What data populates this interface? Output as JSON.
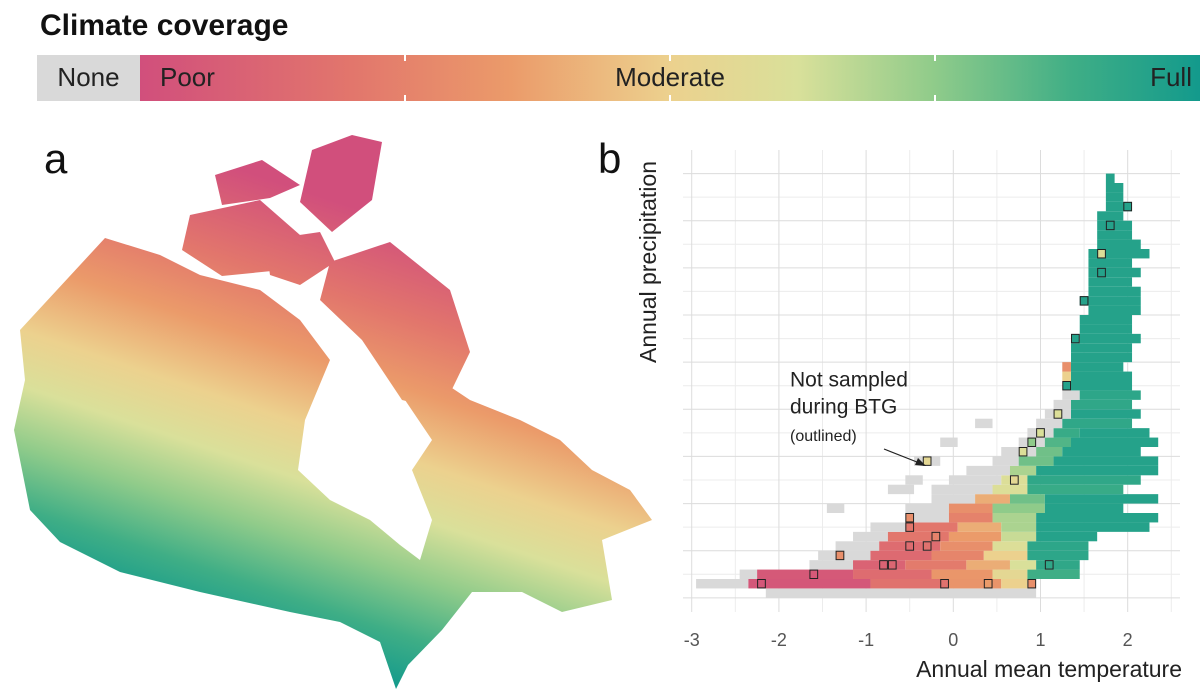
{
  "title": "Climate coverage",
  "legend": {
    "labels": [
      "None",
      "Poor",
      "Moderate",
      "Full"
    ],
    "none_color": "#d9d9d9",
    "stops": [
      [
        0,
        "#d14f7c"
      ],
      [
        0.2,
        "#e2766c"
      ],
      [
        0.35,
        "#eb9b6a"
      ],
      [
        0.5,
        "#ecd18e"
      ],
      [
        0.62,
        "#d9e09a"
      ],
      [
        0.75,
        "#8fcb8a"
      ],
      [
        0.88,
        "#3fae86"
      ],
      [
        1,
        "#139a8c"
      ]
    ],
    "ticks": [
      0.25,
      0.5,
      0.75
    ]
  },
  "chart_data": [
    {
      "type": "map",
      "label": "a"
    },
    {
      "type": "tile",
      "label": "b",
      "xlabel": "Annual mean temperature",
      "ylabel": "Annual precipitation",
      "xlim": [
        -3.1,
        2.6
      ],
      "xticks": [
        -3,
        -2,
        -1,
        0,
        1,
        2
      ],
      "ylim": [
        -0.3,
        9.5
      ],
      "yticks": [
        0,
        1,
        2,
        3,
        4,
        5,
        6,
        7,
        8,
        9
      ],
      "y_tick_labels": false,
      "grid": true,
      "minor_grid": true,
      "bin_width": [
        0.1,
        0.2
      ],
      "tiles": [
        [
          0.1,
          -2.1,
          0.9,
          null
        ],
        [
          0.3,
          -2.9,
          -2.4,
          null
        ],
        [
          0.3,
          -2.3,
          -1.0,
          0.04
        ],
        [
          0.3,
          -0.9,
          -0.1,
          0.18
        ],
        [
          0.3,
          0.0,
          0.5,
          0.32
        ],
        [
          0.3,
          0.6,
          0.8,
          0.5
        ],
        [
          0.3,
          0.9,
          0.9,
          null
        ],
        [
          0.5,
          -2.4,
          -2.3,
          null
        ],
        [
          0.5,
          -2.2,
          -1.2,
          0.05
        ],
        [
          0.5,
          -1.1,
          -0.3,
          0.15
        ],
        [
          0.5,
          -0.2,
          0.4,
          0.33
        ],
        [
          0.5,
          0.5,
          0.8,
          0.55
        ],
        [
          0.5,
          0.9,
          1.4,
          0.88
        ],
        [
          0.7,
          -1.6,
          -1.2,
          null
        ],
        [
          0.7,
          -1.1,
          -0.6,
          0.1
        ],
        [
          0.7,
          -0.5,
          0.1,
          0.22
        ],
        [
          0.7,
          0.2,
          0.6,
          0.4
        ],
        [
          0.7,
          0.7,
          0.9,
          0.62
        ],
        [
          0.7,
          1.0,
          1.4,
          0.92
        ],
        [
          0.9,
          -1.5,
          -1.0,
          null
        ],
        [
          0.9,
          -0.9,
          -0.3,
          0.14
        ],
        [
          0.9,
          -0.2,
          0.3,
          0.26
        ],
        [
          0.9,
          0.4,
          0.8,
          0.5
        ],
        [
          0.9,
          0.9,
          1.5,
          0.93
        ],
        [
          1.1,
          -1.3,
          -0.9,
          null
        ],
        [
          1.1,
          -0.8,
          -0.2,
          0.15
        ],
        [
          1.1,
          -0.1,
          0.4,
          0.3
        ],
        [
          1.1,
          0.5,
          0.8,
          0.6
        ],
        [
          1.1,
          0.9,
          1.5,
          0.93
        ],
        [
          1.3,
          -1.1,
          -0.8,
          null
        ],
        [
          1.3,
          -0.7,
          -0.1,
          0.2
        ],
        [
          1.3,
          0.0,
          0.5,
          0.35
        ],
        [
          1.3,
          0.6,
          0.9,
          0.65
        ],
        [
          1.3,
          1.0,
          1.6,
          0.95
        ],
        [
          1.5,
          -0.9,
          -0.6,
          null
        ],
        [
          1.5,
          -0.5,
          0.0,
          0.2
        ],
        [
          1.5,
          0.1,
          0.5,
          0.4
        ],
        [
          1.5,
          0.6,
          0.9,
          0.7
        ],
        [
          1.5,
          1.0,
          2.2,
          0.95
        ],
        [
          1.7,
          -0.4,
          -0.1,
          null
        ],
        [
          1.7,
          0.0,
          0.4,
          0.25
        ],
        [
          1.7,
          0.5,
          0.9,
          0.7
        ],
        [
          1.7,
          1.0,
          2.3,
          0.95
        ],
        [
          1.9,
          -1.4,
          -1.3,
          null
        ],
        [
          1.9,
          -0.5,
          -0.1,
          null
        ],
        [
          1.9,
          0.0,
          0.4,
          0.3
        ],
        [
          1.9,
          0.5,
          1.0,
          0.75
        ],
        [
          1.9,
          1.1,
          1.9,
          0.95
        ],
        [
          2.1,
          -0.2,
          0.2,
          null
        ],
        [
          2.1,
          0.3,
          0.6,
          0.4
        ],
        [
          2.1,
          0.7,
          1.0,
          0.8
        ],
        [
          2.1,
          1.1,
          2.3,
          0.95
        ],
        [
          2.3,
          -0.7,
          -0.5,
          null
        ],
        [
          2.3,
          -0.2,
          0.4,
          null
        ],
        [
          2.3,
          0.5,
          0.8,
          0.6
        ],
        [
          2.3,
          0.9,
          1.9,
          0.9
        ],
        [
          2.5,
          -0.5,
          -0.4,
          null
        ],
        [
          2.5,
          0.0,
          0.5,
          null
        ],
        [
          2.5,
          0.6,
          0.8,
          0.6
        ],
        [
          2.5,
          0.9,
          2.1,
          0.92
        ],
        [
          2.7,
          0.2,
          0.6,
          null
        ],
        [
          2.7,
          0.7,
          0.9,
          0.7
        ],
        [
          2.7,
          1.0,
          2.3,
          0.95
        ],
        [
          2.9,
          -0.4,
          -0.2,
          null
        ],
        [
          2.9,
          0.5,
          0.7,
          null
        ],
        [
          2.9,
          0.8,
          1.1,
          0.8
        ],
        [
          2.9,
          1.2,
          2.3,
          0.95
        ],
        [
          3.1,
          0.6,
          0.9,
          null
        ],
        [
          3.1,
          1.0,
          1.2,
          0.8
        ],
        [
          3.1,
          1.3,
          2.1,
          0.95
        ],
        [
          3.3,
          -0.1,
          0.0,
          null
        ],
        [
          3.3,
          0.8,
          1.0,
          null
        ],
        [
          3.3,
          1.1,
          1.3,
          0.85
        ],
        [
          3.3,
          1.4,
          2.3,
          0.95
        ],
        [
          3.5,
          0.9,
          1.1,
          null
        ],
        [
          3.5,
          1.2,
          1.4,
          0.9
        ],
        [
          3.5,
          1.5,
          2.2,
          0.95
        ],
        [
          3.7,
          0.3,
          0.4,
          null
        ],
        [
          3.7,
          1.0,
          1.2,
          null
        ],
        [
          3.7,
          1.3,
          2.0,
          0.92
        ],
        [
          3.9,
          1.1,
          1.3,
          null
        ],
        [
          3.9,
          1.4,
          2.1,
          0.95
        ],
        [
          4.1,
          1.2,
          1.3,
          null
        ],
        [
          4.1,
          1.4,
          2.0,
          0.92
        ],
        [
          4.3,
          1.3,
          1.4,
          null
        ],
        [
          4.3,
          1.5,
          2.1,
          0.93
        ],
        [
          4.5,
          1.4,
          2.0,
          0.95
        ],
        [
          4.7,
          1.3,
          1.3,
          0.5
        ],
        [
          4.7,
          1.4,
          2.0,
          0.95
        ],
        [
          4.9,
          1.3,
          1.3,
          0.3
        ],
        [
          4.9,
          1.4,
          1.9,
          0.95
        ],
        [
          5.1,
          1.4,
          2.0,
          0.95
        ],
        [
          5.3,
          1.4,
          2.0,
          0.95
        ],
        [
          5.5,
          1.5,
          2.1,
          0.95
        ],
        [
          5.7,
          1.5,
          2.0,
          0.95
        ],
        [
          5.9,
          1.5,
          2.0,
          0.95
        ],
        [
          6.1,
          1.6,
          2.1,
          0.95
        ],
        [
          6.3,
          1.5,
          2.1,
          0.95
        ],
        [
          6.5,
          1.6,
          2.1,
          0.95
        ],
        [
          6.7,
          1.6,
          2.0,
          0.95
        ],
        [
          6.9,
          1.6,
          2.1,
          0.95
        ],
        [
          7.1,
          1.6,
          2.0,
          0.95
        ],
        [
          7.3,
          1.6,
          2.2,
          0.95
        ],
        [
          7.5,
          1.7,
          2.1,
          0.95
        ],
        [
          7.7,
          1.7,
          2.0,
          0.95
        ],
        [
          7.9,
          1.7,
          2.0,
          0.95
        ],
        [
          8.1,
          1.7,
          1.9,
          0.95
        ],
        [
          8.3,
          1.8,
          2.0,
          0.95
        ],
        [
          8.5,
          1.8,
          1.9,
          0.95
        ],
        [
          8.7,
          1.8,
          1.9,
          0.95
        ],
        [
          8.9,
          1.8,
          1.8,
          0.95
        ]
      ],
      "outlined": [
        [
          -2.2,
          0.3,
          0.04
        ],
        [
          -1.6,
          0.5,
          0.05
        ],
        [
          -1.3,
          0.9,
          0.3
        ],
        [
          -0.8,
          0.7,
          0.1
        ],
        [
          -0.7,
          0.7,
          0.12
        ],
        [
          -0.5,
          1.1,
          0.15
        ],
        [
          -0.3,
          1.1,
          0.18
        ],
        [
          -0.2,
          1.3,
          0.25
        ],
        [
          -0.5,
          1.5,
          0.2
        ],
        [
          -0.5,
          1.7,
          0.3
        ],
        [
          -0.1,
          0.3,
          0.18
        ],
        [
          0.4,
          0.3,
          0.35
        ],
        [
          0.9,
          0.3,
          0.3
        ],
        [
          1.1,
          0.7,
          0.92
        ],
        [
          -0.3,
          2.9,
          0.55
        ],
        [
          0.7,
          2.5,
          0.55
        ],
        [
          0.8,
          3.1,
          0.6
        ],
        [
          1.0,
          3.5,
          0.62
        ],
        [
          0.9,
          3.3,
          0.75
        ],
        [
          1.2,
          3.9,
          0.6
        ],
        [
          1.3,
          4.5,
          0.95
        ],
        [
          1.4,
          5.5,
          0.95
        ],
        [
          1.5,
          6.3,
          0.95
        ],
        [
          1.7,
          7.3,
          0.6
        ],
        [
          1.8,
          7.9,
          0.95
        ],
        [
          2.0,
          8.3,
          0.95
        ],
        [
          1.7,
          6.9,
          0.95
        ]
      ],
      "annotation": {
        "lines": [
          "Not sampled",
          "during BTG"
        ],
        "note": "(outlined)"
      }
    }
  ]
}
